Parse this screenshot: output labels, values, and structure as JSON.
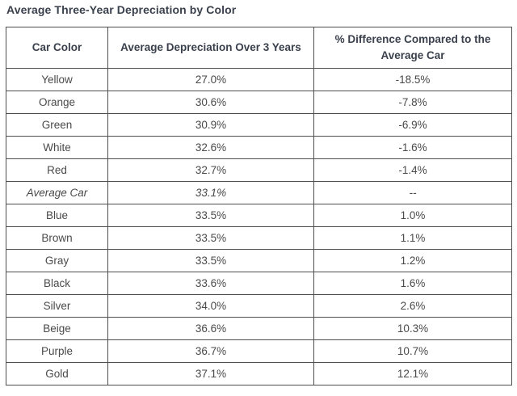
{
  "title": "Average Three-Year Depreciation by Color",
  "colors": {
    "title_text": "#3a414d",
    "header_text": "#3a414d",
    "body_text": "#4a4a4a",
    "border_color": "#4f4f4f",
    "page_bg": "#ffffff"
  },
  "table": {
    "columns": [
      "Car Color",
      "Average Depreciation Over 3 Years",
      "% Difference Compared to the Average Car"
    ],
    "rows": [
      {
        "color": "Yellow",
        "depreciation": "27.0%",
        "difference": "-18.5%",
        "italic": false
      },
      {
        "color": "Orange",
        "depreciation": "30.6%",
        "difference": "-7.8%",
        "italic": false
      },
      {
        "color": "Green",
        "depreciation": "30.9%",
        "difference": "-6.9%",
        "italic": false
      },
      {
        "color": "White",
        "depreciation": "32.6%",
        "difference": "-1.6%",
        "italic": false
      },
      {
        "color": "Red",
        "depreciation": "32.7%",
        "difference": "-1.4%",
        "italic": false
      },
      {
        "color": "Average Car",
        "depreciation": "33.1%",
        "difference": "--",
        "italic": true
      },
      {
        "color": "Blue",
        "depreciation": "33.5%",
        "difference": "1.0%",
        "italic": false
      },
      {
        "color": "Brown",
        "depreciation": "33.5%",
        "difference": "1.1%",
        "italic": false
      },
      {
        "color": "Gray",
        "depreciation": "33.5%",
        "difference": "1.2%",
        "italic": false
      },
      {
        "color": "Black",
        "depreciation": "33.6%",
        "difference": "1.6%",
        "italic": false
      },
      {
        "color": "Silver",
        "depreciation": "34.0%",
        "difference": "2.6%",
        "italic": false
      },
      {
        "color": "Beige",
        "depreciation": "36.6%",
        "difference": "10.3%",
        "italic": false
      },
      {
        "color": "Purple",
        "depreciation": "36.7%",
        "difference": "10.7%",
        "italic": false
      },
      {
        "color": "Gold",
        "depreciation": "37.1%",
        "difference": "12.1%",
        "italic": false
      }
    ]
  },
  "chart_data": {
    "type": "table",
    "title": "Average Three-Year Depreciation by Color",
    "columns": [
      "Car Color",
      "Average Depreciation Over 3 Years",
      "% Difference Compared to the Average Car"
    ],
    "rows": [
      [
        "Yellow",
        "27.0%",
        "-18.5%"
      ],
      [
        "Orange",
        "30.6%",
        "-7.8%"
      ],
      [
        "Green",
        "30.9%",
        "-6.9%"
      ],
      [
        "White",
        "32.6%",
        "-1.6%"
      ],
      [
        "Red",
        "32.7%",
        "-1.4%"
      ],
      [
        "Average Car",
        "33.1%",
        "--"
      ],
      [
        "Blue",
        "33.5%",
        "1.0%"
      ],
      [
        "Brown",
        "33.5%",
        "1.1%"
      ],
      [
        "Gray",
        "33.5%",
        "1.2%"
      ],
      [
        "Black",
        "33.6%",
        "1.6%"
      ],
      [
        "Silver",
        "34.0%",
        "2.6%"
      ],
      [
        "Beige",
        "36.6%",
        "10.3%"
      ],
      [
        "Purple",
        "36.7%",
        "10.7%"
      ],
      [
        "Gold",
        "37.1%",
        "12.1%"
      ]
    ],
    "depreciation_values_pct": [
      27.0,
      30.6,
      30.9,
      32.6,
      32.7,
      33.1,
      33.5,
      33.5,
      33.5,
      33.6,
      34.0,
      36.6,
      36.7,
      37.1
    ],
    "difference_values_pct": [
      -18.5,
      -7.8,
      -6.9,
      -1.6,
      -1.4,
      null,
      1.0,
      1.1,
      1.2,
      1.6,
      2.6,
      10.3,
      10.7,
      12.1
    ]
  }
}
